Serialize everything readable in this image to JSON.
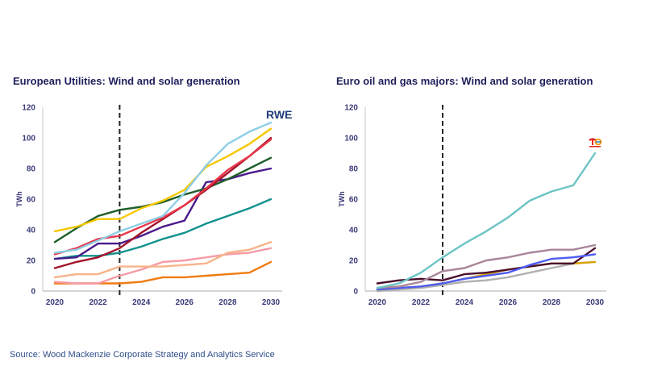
{
  "source": "Source: Wood Mackenzie Corporate Strategy and Analytics Service",
  "chart_data": [
    {
      "type": "line",
      "title": "European Utilities: Wind and solar generation",
      "xlabel": "",
      "ylabel": "TWh",
      "ylim": [
        0,
        120
      ],
      "yticks": [
        0,
        20,
        40,
        60,
        80,
        100,
        120
      ],
      "xlim": [
        2020,
        2030
      ],
      "xticks": [
        2020,
        2022,
        2024,
        2026,
        2028,
        2030
      ],
      "x": [
        2020,
        2021,
        2022,
        2023,
        2024,
        2025,
        2026,
        2027,
        2028,
        2029,
        2030
      ],
      "forecast_divider_x": 2023,
      "logo": "RWE",
      "grid": false,
      "series": [
        {
          "name": "light-blue",
          "color": "#8ecfe6",
          "values": [
            25,
            27,
            33,
            39,
            44,
            49,
            64,
            82,
            96,
            104,
            110
          ]
        },
        {
          "name": "yellow",
          "color": "#f5c800",
          "values": [
            39,
            42,
            47,
            47,
            54,
            59,
            66,
            81,
            88,
            96,
            106
          ]
        },
        {
          "name": "red",
          "color": "#e8364a",
          "values": [
            24,
            28,
            34,
            36,
            42,
            48,
            56,
            67,
            79,
            88,
            99
          ]
        },
        {
          "name": "dark-red",
          "color": "#a3122a",
          "values": [
            15,
            19,
            22,
            28,
            38,
            47,
            56,
            66,
            77,
            88,
            100
          ]
        },
        {
          "name": "dark-green",
          "color": "#1e5e2a",
          "values": [
            32,
            41,
            49,
            53,
            55,
            58,
            63,
            67,
            73,
            80,
            87
          ]
        },
        {
          "name": "purple",
          "color": "#4a1a8a",
          "values": [
            21,
            22,
            31,
            31,
            36,
            42,
            46,
            71,
            73,
            77,
            80
          ]
        },
        {
          "name": "teal",
          "color": "#12918e",
          "values": [
            21,
            23,
            23,
            25,
            29,
            34,
            38,
            44,
            49,
            54,
            60
          ]
        },
        {
          "name": "peach",
          "color": "#f7b38a",
          "values": [
            9,
            11,
            11,
            16,
            16,
            16,
            17,
            18,
            25,
            27,
            32
          ]
        },
        {
          "name": "pink",
          "color": "#f59aa6",
          "values": [
            6,
            5,
            5,
            10,
            14,
            19,
            20,
            22,
            24,
            25,
            28
          ]
        },
        {
          "name": "orange",
          "color": "#f07b10",
          "values": [
            5,
            5,
            5,
            5,
            6,
            9,
            9,
            10,
            11,
            12,
            19
          ]
        }
      ]
    },
    {
      "type": "line",
      "title": "Euro oil and gas majors: Wind and solar generation",
      "xlabel": "",
      "ylabel": "TWh",
      "ylim": [
        0,
        120
      ],
      "yticks": [
        0,
        20,
        40,
        60,
        80,
        100,
        120
      ],
      "xlim": [
        2020,
        2030
      ],
      "xticks": [
        2020,
        2022,
        2024,
        2026,
        2028,
        2030
      ],
      "x": [
        2020,
        2021,
        2022,
        2023,
        2024,
        2025,
        2026,
        2027,
        2028,
        2029,
        2030
      ],
      "forecast_divider_x": 2023,
      "logo": "TotalEnergies",
      "grid": false,
      "series": [
        {
          "name": "light-teal",
          "color": "#6cc4c4",
          "values": [
            2,
            5,
            12,
            22,
            31,
            39,
            48,
            59,
            65,
            69,
            90
          ]
        },
        {
          "name": "mauve",
          "color": "#a98599",
          "values": [
            2,
            3,
            6,
            13,
            15,
            20,
            22,
            25,
            27,
            27,
            30
          ]
        },
        {
          "name": "blue",
          "color": "#4e5cf0",
          "values": [
            1,
            2,
            3,
            5,
            8,
            10,
            12,
            17,
            21,
            22,
            24
          ]
        },
        {
          "name": "dark-maroon",
          "color": "#4a0f2e",
          "values": [
            5,
            7,
            8,
            7,
            11,
            12,
            14,
            16,
            18,
            18,
            28
          ]
        },
        {
          "name": "gold",
          "color": "#d9a400",
          "values": [
            1,
            2,
            3,
            5,
            8,
            11,
            14,
            16,
            18,
            18,
            19
          ]
        },
        {
          "name": "grey",
          "color": "#b0b0b0",
          "values": [
            0,
            1,
            2,
            4,
            6,
            7,
            9,
            12,
            15,
            18,
            19
          ]
        }
      ]
    }
  ]
}
